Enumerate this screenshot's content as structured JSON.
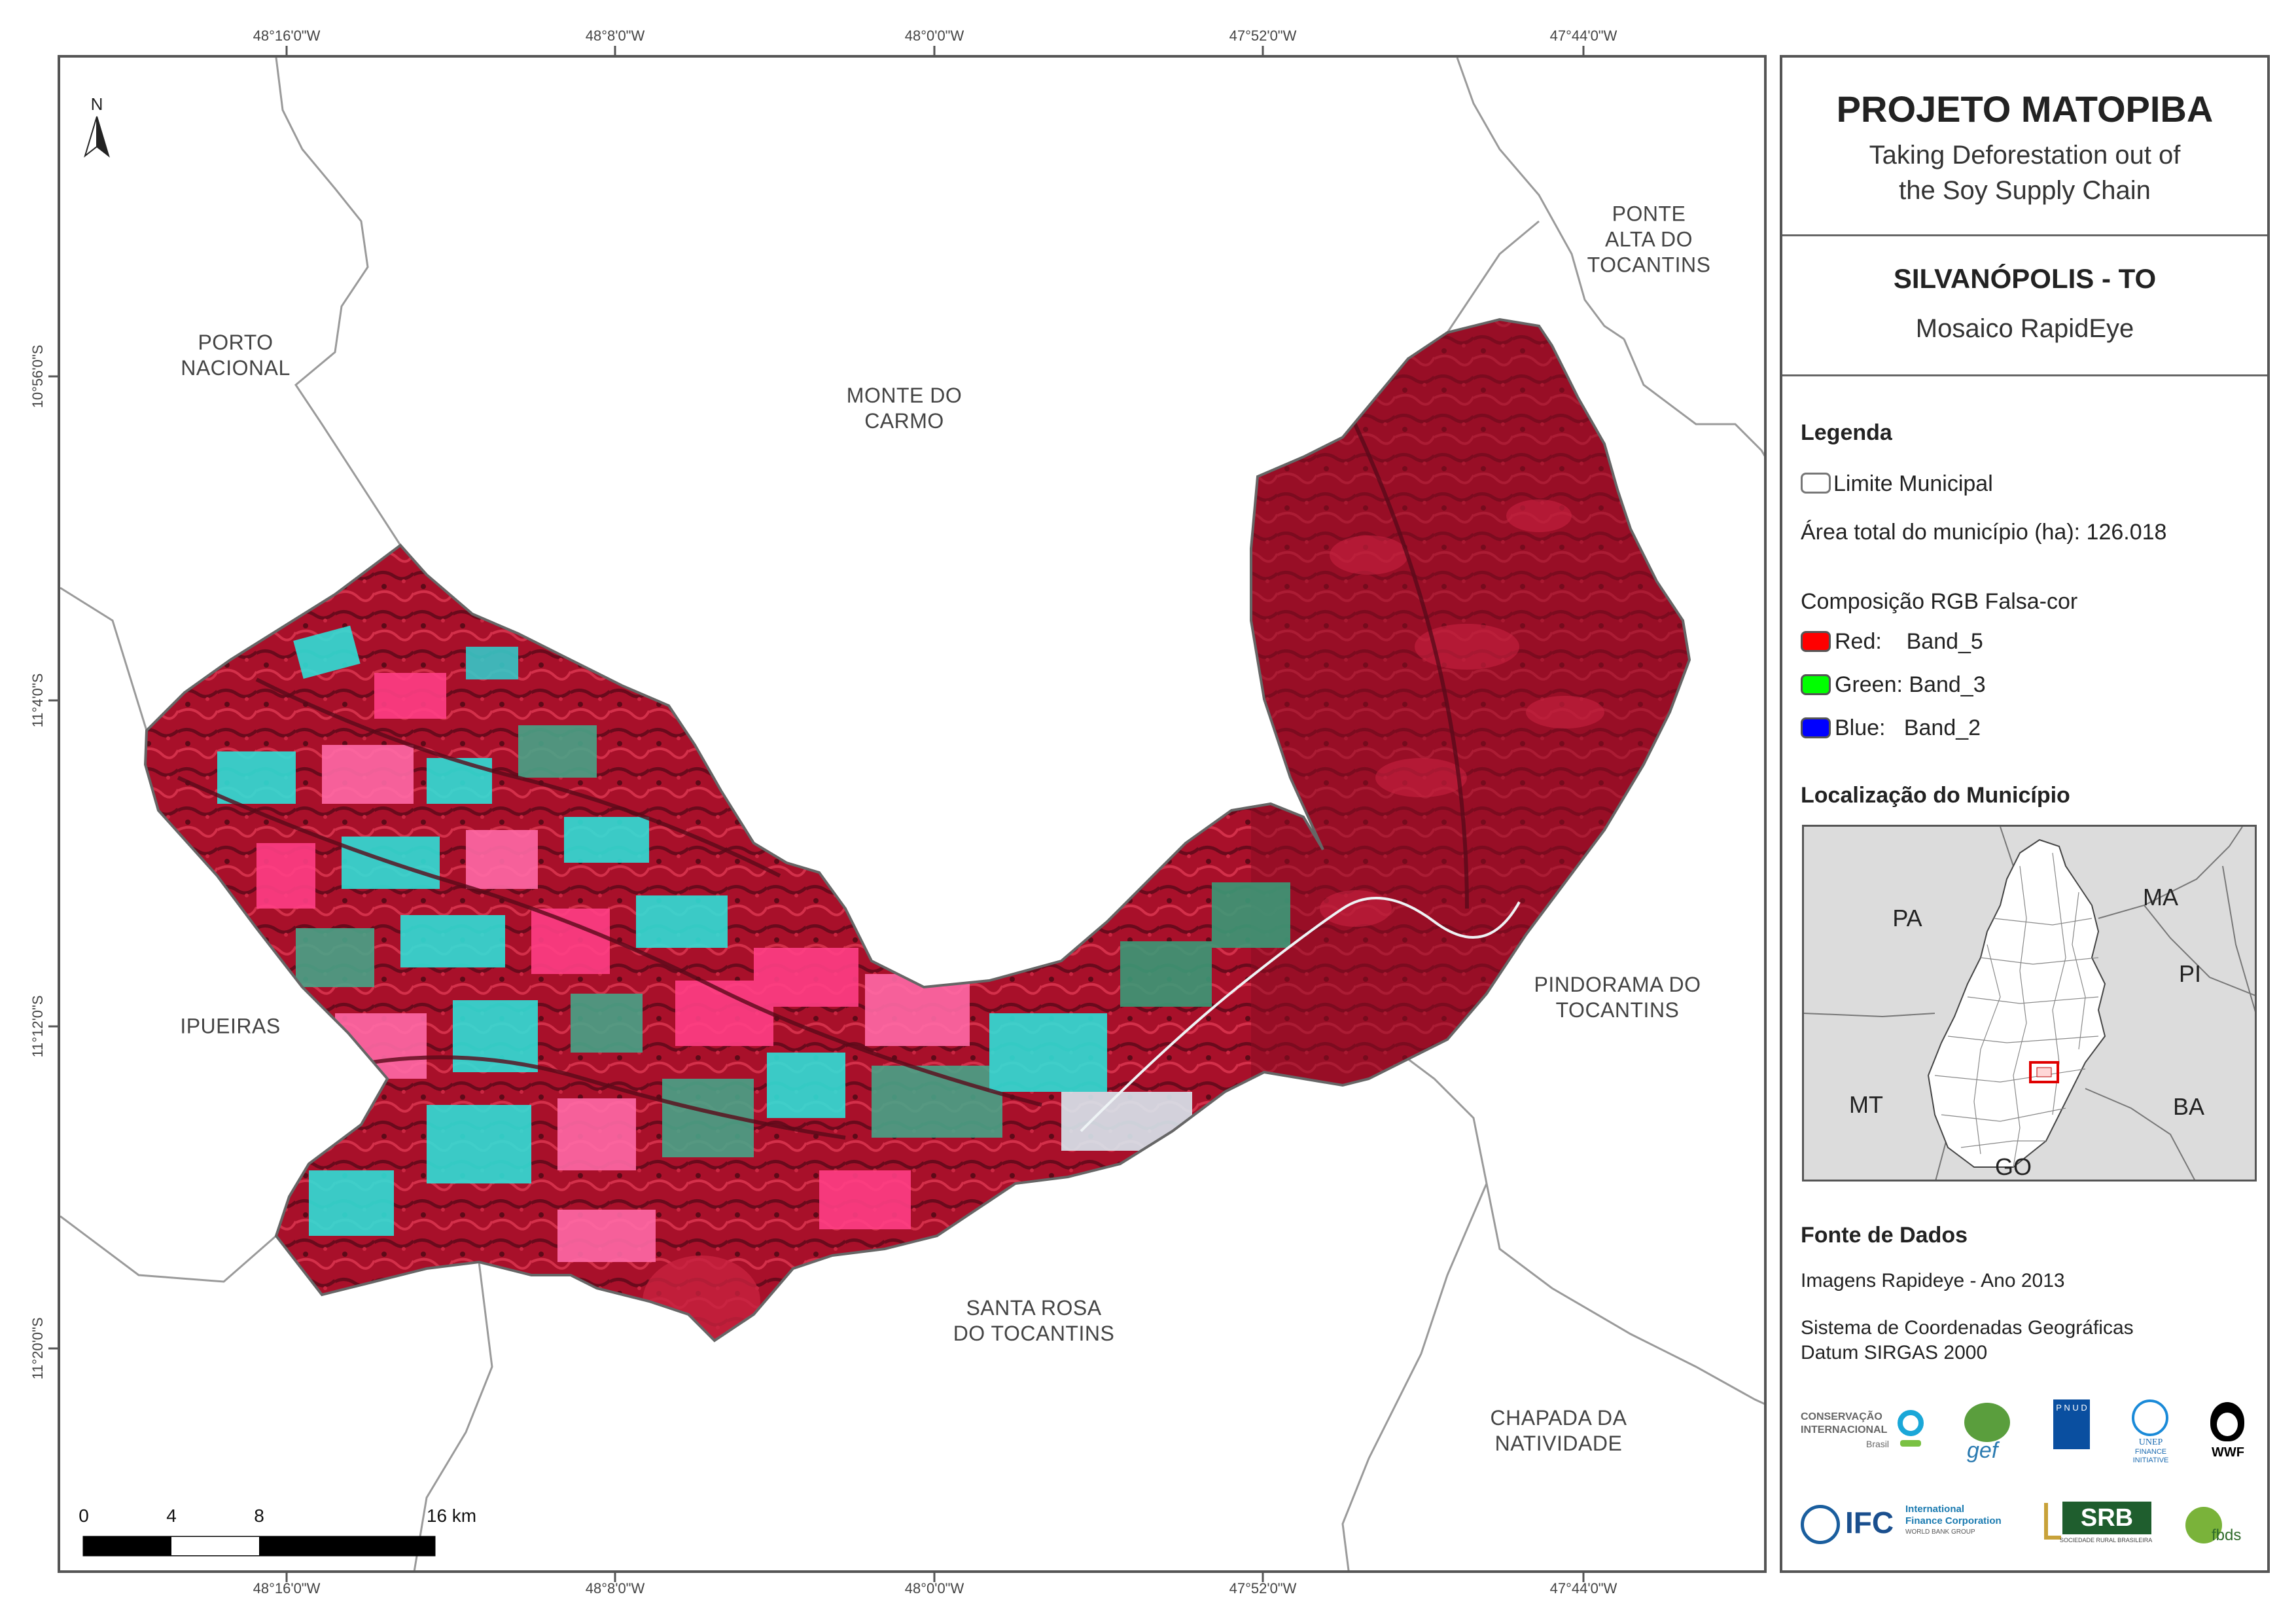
{
  "coordinates": {
    "top": [
      "48°16'0\"W",
      "48°8'0\"W",
      "48°0'0\"W",
      "47°52'0\"W",
      "47°44'0\"W"
    ],
    "bottom": [
      "48°16'0\"W",
      "48°8'0\"W",
      "48°0'0\"W",
      "47°52'0\"W",
      "47°44'0\"W"
    ],
    "left": [
      "10°56'0\"S",
      "11°4'0\"S",
      "11°12'0\"S",
      "11°20'0\"S"
    ]
  },
  "map": {
    "north_label": "N",
    "neighbors": {
      "porto_nacional": "PORTO\nNACIONAL",
      "monte_do_carmo": "MONTE DO\nCARMO",
      "ponte_alta": "PONTE\nALTA DO\nTOCANTINS",
      "ipueiras": "IPUEIRAS",
      "pindorama": "PINDORAMA DO\nTOCANTINS",
      "santa_rosa": "SANTA ROSA\nDO TOCANTINS",
      "chapada": "CHAPADA DA\nNATIVIDADE"
    },
    "scale_bar": {
      "labels": [
        "0",
        "4",
        "8",
        "16 km"
      ]
    }
  },
  "panel": {
    "title": "PROJETO MATOPIBA",
    "subtitle_line1": "Taking Deforestation out of",
    "subtitle_line2": "the Soy Supply Chain",
    "municipality": "SILVANÓPOLIS - TO",
    "mosaic": "Mosaico RapidEye",
    "legend": {
      "heading": "Legenda",
      "limit_label": "Limite Municipal",
      "area_label": "Área total do município (ha): 126.018",
      "composition_label": "Composição RGB Falsa-cor",
      "bands": [
        {
          "label": "Red:    Band_5",
          "color": "#ff0000"
        },
        {
          "label": "Green: Band_3",
          "color": "#00ff00"
        },
        {
          "label": "Blue:   Band_2",
          "color": "#0000ff"
        }
      ]
    },
    "location": {
      "heading": "Localização do Município",
      "states": {
        "pa": "PA",
        "ma": "MA",
        "pi": "PI",
        "mt": "MT",
        "ba": "BA",
        "go": "GO"
      }
    },
    "sources": {
      "heading": "Fonte de Dados",
      "imagery": "Imagens Rapideye - Ano 2013",
      "coord_system": "Sistema de Coordenadas Geográficas",
      "datum": "Datum SIRGAS 2000"
    },
    "logos": {
      "ci_line1": "CONSERVAÇÃO",
      "ci_line2": "INTERNACIONAL",
      "ci_line3": "Brasil",
      "gef": "gef",
      "pnud": "P N U D",
      "unep_line1": "UNEP",
      "unep_line2": "FINANCE",
      "unep_line3": "INITIATIVE",
      "wwf": "WWF",
      "ifc": "IFC",
      "ifc_line1": "International",
      "ifc_line2": "Finance Corporation",
      "ifc_line3": "WORLD BANK GROUP",
      "srb": "SRB",
      "srb_sub": "SOCIEDADE RURAL BRASILEIRA",
      "fbds": "fbds"
    }
  },
  "colors": {
    "frame": "#555555",
    "boundary": "#9a9a9a",
    "veg_red": "#b3122e",
    "dark_red": "#6e0f22",
    "cyan": "#2fe0d8",
    "pink": "#ff3f86",
    "green": "#3a9a78"
  }
}
